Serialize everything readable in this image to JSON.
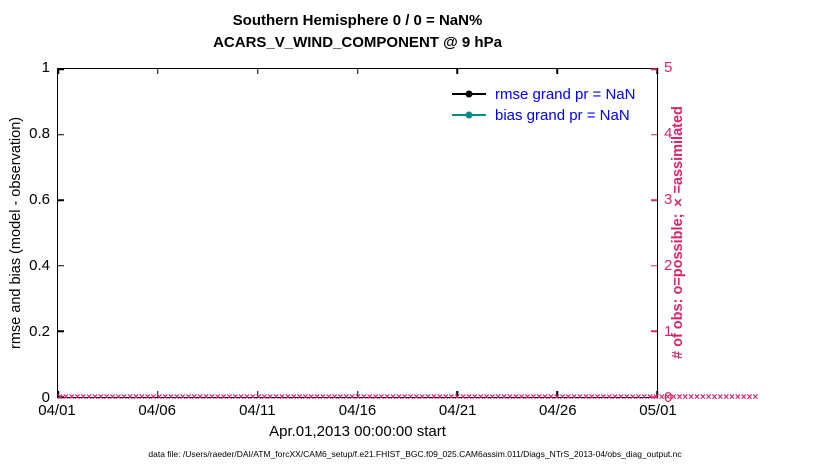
{
  "title": {
    "line1": "Southern Hemisphere 0 / 0 = NaN%",
    "line2": "ACARS_V_WIND_COMPONENT @ 9 hPa"
  },
  "axes": {
    "left": {
      "label": "rmse and bias (model - observation)",
      "ticks": [
        "0",
        "0.2",
        "0.4",
        "0.6",
        "0.8",
        "1"
      ],
      "range": [
        0,
        1
      ],
      "color": "#000000"
    },
    "right": {
      "label": "# of obs: o=possible; ×=assimilated",
      "ticks": [
        "0",
        "1",
        "2",
        "3",
        "4",
        "5"
      ],
      "range": [
        0,
        5
      ],
      "color": "#d8266c"
    },
    "x": {
      "ticks": [
        "04/01",
        "04/06",
        "04/11",
        "04/16",
        "04/21",
        "04/26",
        "05/01"
      ],
      "label": "Apr.01,2013 00:00:00 start"
    }
  },
  "legend": {
    "text_color": "#0000ff",
    "items": [
      {
        "label": "rmse grand pr = NaN",
        "color": "#000000",
        "marker": "line-with-dot"
      },
      {
        "label": "bias grand pr = NaN",
        "color": "#008b8b",
        "marker": "line-with-dot"
      }
    ]
  },
  "footer": "data file: /Users/raeder/DAI/ATM_forcXX/CAM6_setup/f.e21.FHIST_BGC.f09_025.CAM6assim.011/Diags_NTrS_2013-04/obs_diag_output.nc",
  "chart_data": {
    "type": "line",
    "title": "Southern Hemisphere 0 / 0 = NaN%",
    "subtitle": "ACARS_V_WIND_COMPONENT @ 9 hPa",
    "xlabel": "Apr.01,2013 00:00:00 start",
    "x_tick_labels": [
      "04/01",
      "04/06",
      "04/11",
      "04/16",
      "04/21",
      "04/26",
      "05/01"
    ],
    "left_axis": {
      "label": "rmse and bias (model - observation)",
      "range": [
        0,
        1
      ],
      "grid": false
    },
    "right_axis": {
      "label": "# of obs: o=possible; ×=assimilated",
      "range": [
        0,
        5
      ]
    },
    "legend_position": "upper-right-inside",
    "series": [
      {
        "name": "rmse grand pr = NaN",
        "axis": "left",
        "values": "all NaN (nothing plotted)"
      },
      {
        "name": "bias grand pr = NaN",
        "axis": "left",
        "values": "all NaN (nothing plotted)"
      },
      {
        "name": "# of obs possible (o markers)",
        "axis": "right",
        "constant_value": 0
      },
      {
        "name": "# of obs assimilated (× markers)",
        "axis": "right",
        "constant_value": 0
      }
    ],
    "obs_marker_glyph": "×",
    "obs_marker_count": 120,
    "obs_marker_value": 0
  }
}
